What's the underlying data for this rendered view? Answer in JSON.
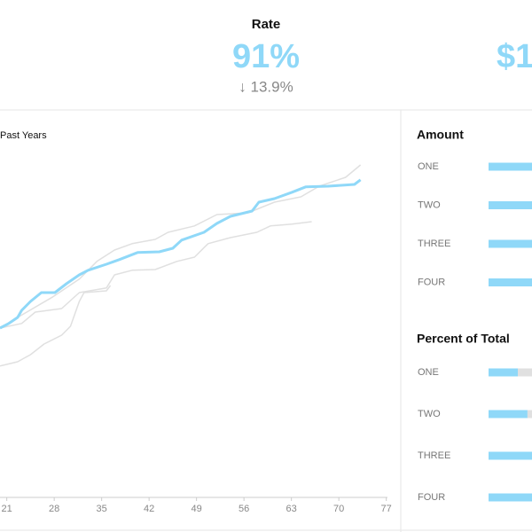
{
  "kpis": [
    {
      "label": "Rate",
      "value": "91%",
      "change": "↓ 13.9%"
    },
    {
      "value": "$1"
    }
  ],
  "chart_data": [
    {
      "type": "line",
      "title": "Past Years",
      "xlim": [
        20,
        78
      ],
      "xticks": [
        21,
        28,
        35,
        42,
        49,
        56,
        63,
        70,
        77
      ],
      "ylim": [
        0,
        100
      ],
      "series": [
        {
          "color": "#e0e0e0",
          "x": [
            20.0,
            22.6,
            27.8,
            31.7,
            34.3,
            36.9,
            39.5,
            42.9,
            44.8,
            48.7,
            52.0,
            56.6,
            60.5,
            64.4,
            67.1,
            71.0,
            73.2
          ],
          "values": [
            47.5,
            50.5,
            56.3,
            61.3,
            66.3,
            69.5,
            71.3,
            72.5,
            74.5,
            76.3,
            79.5,
            80,
            83,
            84.5,
            87.5,
            90,
            93.5
          ]
        },
        {
          "color": "#e0e0e0",
          "x": [
            20.0,
            23.2,
            25.2,
            29.1,
            31.7,
            35.7,
            36.9,
            39.5,
            42.9,
            46.1,
            48.7,
            50.7,
            54.0,
            57.9,
            59.9,
            63.1,
            66.0
          ],
          "values": [
            47.5,
            48.8,
            52,
            53,
            57.5,
            58.8,
            62.5,
            63.8,
            64,
            66.3,
            67.5,
            71.3,
            73,
            74.5,
            76.3,
            76.8,
            77.5
          ]
        },
        {
          "color": "#e0e0e0",
          "x": [
            20.0,
            22.6,
            24.5,
            26.5,
            29.1,
            30.4,
            31.7,
            32.4,
            35.7,
            36.3
          ],
          "values": [
            36.8,
            38,
            40,
            43,
            45.5,
            48,
            55,
            57.5,
            58,
            59.5
          ]
        },
        {
          "color": "#8fd8f8",
          "x": [
            20.0,
            21.3,
            22.6,
            23.2,
            24.5,
            26.1,
            28.1,
            29.8,
            31.7,
            33.0,
            35.7,
            37.6,
            40.3,
            43.5,
            45.5,
            46.8,
            50.1,
            52.0,
            54.0,
            57.2,
            58.2,
            60.5,
            63.1,
            65.1,
            68.4,
            72.3,
            73.2
          ],
          "values": [
            47.5,
            48.8,
            50.5,
            52.5,
            55,
            57.5,
            57.5,
            60,
            62.5,
            63.8,
            65.5,
            66.8,
            68.8,
            69,
            70,
            72.3,
            74.5,
            77,
            79,
            80.5,
            83,
            84,
            85.8,
            87.3,
            87.5,
            88,
            89.3
          ]
        }
      ]
    },
    {
      "type": "bar",
      "title": "Amount",
      "categories": [
        "ONE",
        "TWO",
        "THREE",
        "FOUR"
      ],
      "values": [
        90,
        90,
        90,
        90
      ],
      "xlim": [
        0,
        100
      ],
      "color": "#8fd8f8"
    },
    {
      "type": "bar",
      "title": "Percent of Total",
      "categories": [
        "ONE",
        "TWO",
        "THREE",
        "FOUR"
      ],
      "values": [
        55,
        73,
        90,
        90
      ],
      "xlim": [
        0,
        100
      ],
      "color": "#8fd8f8",
      "track_color": "#e0e0e0"
    }
  ]
}
